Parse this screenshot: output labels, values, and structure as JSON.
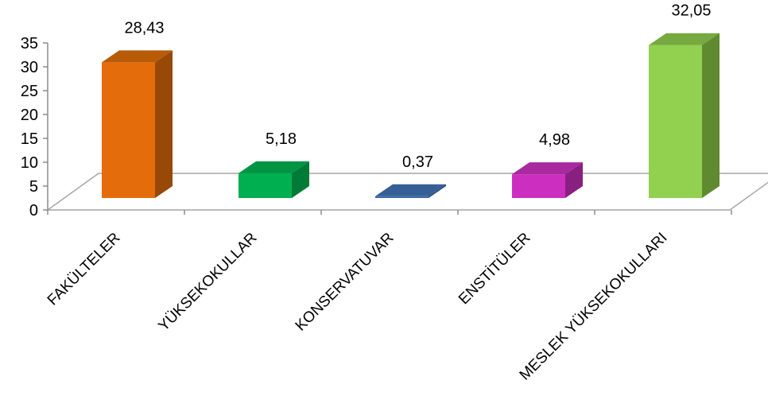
{
  "chart_data": {
    "type": "bar",
    "style": "3d-column",
    "categories": [
      "FAKÜLTELER",
      "YÜKSEKOKULLAR",
      "KONSERVATUVAR",
      "ENSTİTÜLER",
      "MESLEK YÜKSEKOKULLARI"
    ],
    "values": [
      28.43,
      5.18,
      0.37,
      4.98,
      32.05
    ],
    "value_labels": [
      "28,43",
      "5,18",
      "0,37",
      "4,98",
      "32,05"
    ],
    "ylim": [
      0,
      35
    ],
    "yticks": [
      "0",
      "5",
      "10",
      "15",
      "20",
      "25",
      "30",
      "35"
    ],
    "grid": false,
    "legend": "none",
    "colors": [
      {
        "front": "#E46C0A",
        "side": "#984807",
        "top": "#B85A08"
      },
      {
        "front": "#00B050",
        "side": "#007A37",
        "top": "#009443"
      },
      {
        "front": "#3E6AA8",
        "side": "#2A4B7A",
        "top": "#365F96"
      },
      {
        "front": "#CC2FC0",
        "side": "#8A1F82",
        "top": "#A82A9E"
      },
      {
        "front": "#92D050",
        "side": "#5F8A30",
        "top": "#76A93F"
      }
    ]
  }
}
